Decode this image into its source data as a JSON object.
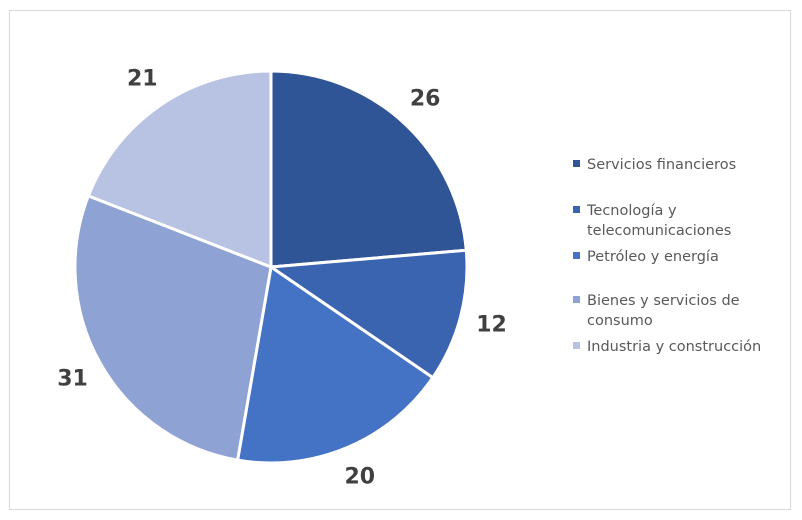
{
  "chart_data": {
    "type": "pie",
    "title": "",
    "categories": [
      "Servicios financieros",
      "Tecnología y telecomunicaciones",
      "Petróleo y energía",
      "Bienes y servicios de consumo",
      "Industria y construcción"
    ],
    "legend_lines": [
      [
        "Servicios financieros"
      ],
      [
        "Tecnología y",
        "telecomunicaciones"
      ],
      [
        "Petróleo y energía"
      ],
      [
        "Bienes y servicios de",
        "consumo"
      ],
      [
        "Industria y construcción"
      ]
    ],
    "values": [
      26,
      12,
      20,
      31,
      21
    ],
    "data_labels": [
      "26",
      "12",
      "20",
      "31",
      "21"
    ],
    "colors": [
      "#2f5597",
      "#3a63b0",
      "#4472c4",
      "#8fa2d4",
      "#b8c2e2"
    ],
    "legend_position": "right",
    "start_angle": "12 o'clock",
    "direction": "clockwise"
  }
}
